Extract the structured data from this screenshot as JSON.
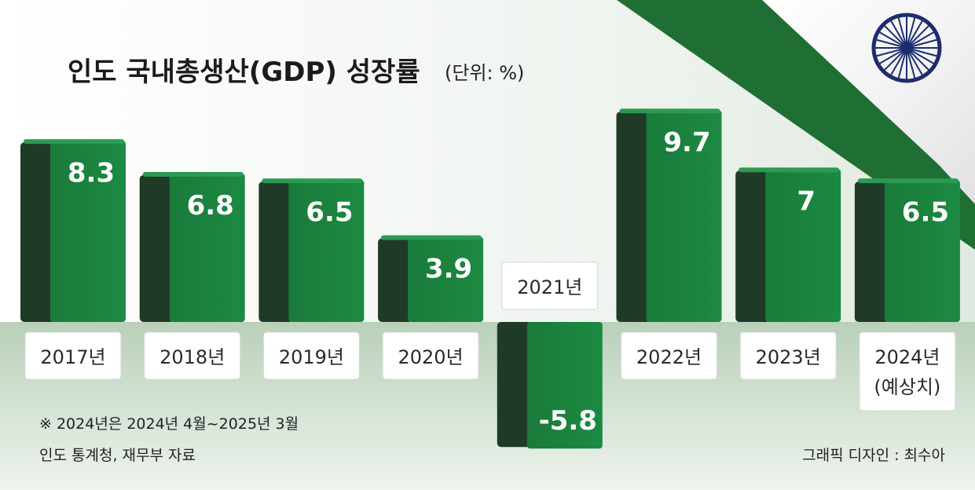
{
  "title": "인도 국내총생산(GDP) 성장률",
  "unit": "(단위: %)",
  "footnote": "※ 2024년은 2024년 4월~2025년 3월",
  "source": "인도 통계청, 재무부 자료",
  "credit": "그래픽 디자인 : 최수아",
  "colors": {
    "bar_front": "#1a7d3c",
    "bar_side": "#1f3a26",
    "flag_green": "#1f6e34",
    "flag_orange": "#f07c2a",
    "chakra": "#1c2d6e"
  },
  "chart_data": {
    "type": "bar",
    "categories": [
      "2017년",
      "2018년",
      "2019년",
      "2020년",
      "2021년",
      "2022년",
      "2023년",
      "2024년"
    ],
    "category_notes": [
      "",
      "",
      "",
      "",
      "",
      "",
      "",
      "(예상치)"
    ],
    "values": [
      8.3,
      6.8,
      6.5,
      3.9,
      -5.8,
      9.7,
      7,
      6.5
    ],
    "value_labels": [
      "8.3",
      "6.8",
      "6.5",
      "3.9",
      "-5.8",
      "9.7",
      "7",
      "6.5"
    ],
    "title": "인도 국내총생산(GDP) 성장률",
    "ylabel": "",
    "unit": "%",
    "grid": false
  }
}
